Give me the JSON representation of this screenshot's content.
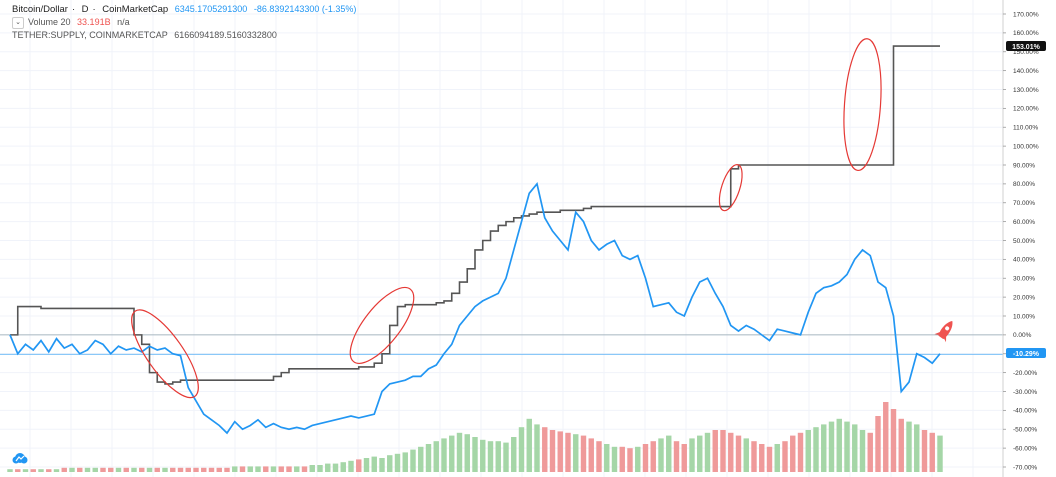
{
  "legend": {
    "pair": "Bitcoin/Dollar",
    "interval": "D",
    "source": "CoinMarketCap",
    "price": "6345.1705291300",
    "change": "-86.8392143300 (-1.35%)",
    "volume_label": "Volume 20",
    "volume_value": "33.191B",
    "volume_na": "n/a",
    "indicator": "TETHER:SUPPLY, COINMARKETCAP",
    "indicator_value": "6166094189.5160332800"
  },
  "badges": {
    "tether_last": "153.01%",
    "btc_last": "-10.29%"
  },
  "colors": {
    "btc_line": "#2196f3",
    "tether_line": "#555555",
    "annotation": "#e53935",
    "volume_up": "#a5d6a7",
    "volume_down": "#ef9a9a",
    "zero_line": "#90a4ae",
    "rocket": "#ef5350"
  },
  "icons": {
    "collapse": "chevron-down-icon",
    "logo": "tradingview-cloud-icon",
    "rocket": "rocket-icon"
  },
  "chart_data": {
    "type": "line",
    "title": "",
    "xlabel": "",
    "ylabel": "",
    "y_scale": "percent",
    "ylim": [
      -70,
      170
    ],
    "yticks": [
      "170.00%",
      "160.00%",
      "150.00%",
      "140.00%",
      "130.00%",
      "120.00%",
      "110.00%",
      "100.00%",
      "90.00%",
      "80.00%",
      "70.00%",
      "60.00%",
      "50.00%",
      "40.00%",
      "30.00%",
      "20.00%",
      "10.00%",
      "0.00%",
      "-10.00%",
      "-20.00%",
      "-30.00%",
      "-40.00%",
      "-50.00%",
      "-60.00%",
      "-70.00%"
    ],
    "grid": true,
    "x": [
      0,
      1,
      2,
      3,
      4,
      5,
      6,
      7,
      8,
      9,
      10,
      11,
      12,
      13,
      14,
      15,
      16,
      17,
      18,
      19,
      20,
      21,
      22,
      23,
      24,
      25,
      26,
      27,
      28,
      29,
      30,
      31,
      32,
      33,
      34,
      35,
      36,
      37,
      38,
      39,
      40,
      41,
      42,
      43,
      44,
      45,
      46,
      47,
      48,
      49,
      50,
      51,
      52,
      53,
      54,
      55,
      56,
      57,
      58,
      59,
      60,
      61,
      62,
      63,
      64,
      65,
      66,
      67,
      68,
      69,
      70,
      71,
      72,
      73,
      74,
      75,
      76,
      77,
      78,
      79,
      80,
      81,
      82,
      83,
      84,
      85,
      86,
      87,
      88,
      89,
      90,
      91,
      92,
      93,
      94,
      95,
      96,
      97,
      98,
      99,
      100,
      101,
      102,
      103,
      104,
      105,
      106,
      107,
      108,
      109,
      110,
      111,
      112,
      113,
      114,
      115,
      116,
      117,
      118,
      119,
      120
    ],
    "series": [
      {
        "name": "Bitcoin/Dollar",
        "values": [
          0,
          -10,
          -5,
          -8,
          -3,
          -9,
          -2,
          -7,
          -5,
          -10,
          -8,
          -3,
          -5,
          -10,
          -6,
          -8,
          -7,
          -9,
          -6,
          -8,
          -7,
          -10,
          -11,
          -28,
          -35,
          -42,
          -45,
          -48,
          -52,
          -46,
          -50,
          -48,
          -45,
          -49,
          -47,
          -49,
          -50,
          -49,
          -50,
          -48,
          -47,
          -46,
          -45,
          -44,
          -43,
          -44,
          -43,
          -42,
          -30,
          -26,
          -25,
          -24,
          -22,
          -22,
          -18,
          -16,
          -10,
          -5,
          5,
          10,
          15,
          18,
          20,
          22,
          30,
          45,
          60,
          75,
          80,
          62,
          55,
          50,
          45,
          65,
          60,
          50,
          45,
          48,
          50,
          42,
          40,
          42,
          30,
          15,
          16,
          17,
          12,
          10,
          20,
          28,
          30,
          22,
          15,
          5,
          2,
          5,
          3,
          0,
          -3,
          3,
          2,
          1,
          0,
          12,
          22,
          25,
          26,
          28,
          32,
          40,
          45,
          42,
          28,
          25,
          10,
          -30,
          -25,
          -10,
          -12,
          -15,
          -10
        ]
      },
      {
        "name": "TETHER:SUPPLY",
        "values": [
          0,
          15,
          15,
          15,
          14,
          14,
          14,
          14,
          14,
          14,
          14,
          14,
          14,
          14,
          14,
          14,
          0,
          -5,
          -20,
          -25,
          -26,
          -25,
          -24,
          -24,
          -24,
          -24,
          -24,
          -24,
          -24,
          -24,
          -24,
          -24,
          -24,
          -24,
          -22,
          -20,
          -18,
          -18,
          -18,
          -18,
          -18,
          -18,
          -18,
          -18,
          -18,
          -17,
          -17,
          -15,
          -10,
          5,
          15,
          16,
          16,
          16,
          16,
          17,
          18,
          22,
          28,
          35,
          45,
          50,
          55,
          58,
          60,
          62,
          63,
          64,
          65,
          65,
          65,
          66,
          66,
          66,
          67,
          68,
          68,
          68,
          68,
          68,
          68,
          68,
          68,
          68,
          68,
          68,
          68,
          68,
          68,
          68,
          68,
          68,
          68,
          88,
          90,
          90,
          90,
          90,
          90,
          90,
          90,
          90,
          90,
          90,
          90,
          90,
          90,
          90,
          90,
          90,
          90,
          90,
          90,
          90,
          153,
          153,
          153,
          153,
          153,
          153,
          153
        ]
      }
    ],
    "volume": [
      2,
      2,
      2,
      2,
      2,
      2,
      2,
      3,
      3,
      3,
      3,
      3,
      3,
      3,
      3,
      3,
      3,
      3,
      3,
      3,
      3,
      3,
      3,
      3,
      3,
      3,
      3,
      3,
      3,
      4,
      4,
      4,
      4,
      4,
      4,
      4,
      4,
      4,
      4,
      5,
      5,
      6,
      6,
      7,
      8,
      9,
      10,
      11,
      10,
      12,
      13,
      14,
      16,
      18,
      20,
      22,
      24,
      26,
      28,
      27,
      25,
      23,
      22,
      22,
      21,
      25,
      32,
      38,
      34,
      32,
      30,
      29,
      28,
      27,
      26,
      24,
      22,
      20,
      18,
      18,
      17,
      18,
      20,
      22,
      24,
      26,
      22,
      20,
      24,
      26,
      28,
      30,
      30,
      28,
      26,
      24,
      22,
      20,
      18,
      20,
      22,
      26,
      28,
      30,
      32,
      34,
      36,
      38,
      36,
      34,
      30,
      28,
      40,
      50,
      45,
      38,
      36,
      34,
      30,
      28,
      26
    ]
  }
}
